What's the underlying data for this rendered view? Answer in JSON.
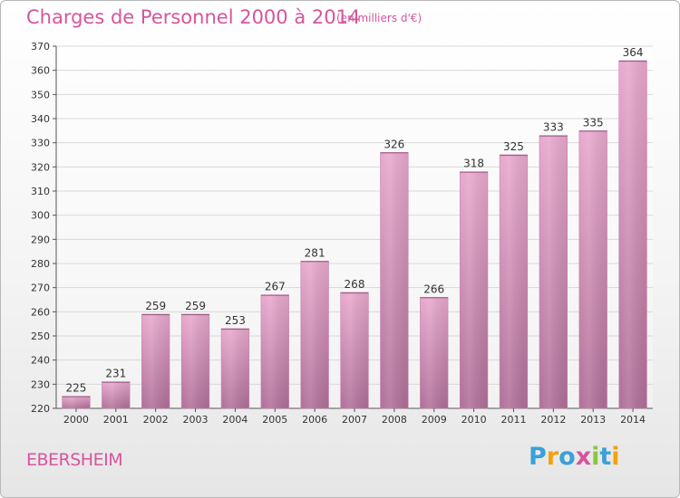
{
  "title": "Charges de Personnel 2000 à 2014",
  "subtitle": "(en milliers d'€)",
  "commune": "EBERSHEIM",
  "logo": {
    "text": "Proxiti",
    "letters": [
      {
        "ch": "P",
        "color": "#3aa0da"
      },
      {
        "ch": "r",
        "color": "#f3a20c"
      },
      {
        "ch": "o",
        "color": "#3aa0da"
      },
      {
        "ch": "x",
        "color": "#d6559c"
      },
      {
        "ch": "i",
        "color": "#8cc63e"
      },
      {
        "ch": "t",
        "color": "#3aa0da"
      },
      {
        "ch": "i",
        "color": "#f3a20c"
      }
    ]
  },
  "colors": {
    "bar_top": "#e8a8cd",
    "bar_bottom": "#b06f98",
    "accent": "#d6559c",
    "grid": "#d9d9d9"
  },
  "chart_data": {
    "type": "bar",
    "title": "Charges de Personnel 2000 à 2014",
    "subtitle": "(en milliers d'€)",
    "xlabel": "",
    "ylabel": "",
    "ylim": [
      220,
      370
    ],
    "ytick_step": 10,
    "grid": true,
    "categories": [
      "2000",
      "2001",
      "2002",
      "2003",
      "2004",
      "2005",
      "2006",
      "2007",
      "2008",
      "2009",
      "2010",
      "2011",
      "2012",
      "2013",
      "2014"
    ],
    "values": [
      225,
      231,
      259,
      259,
      253,
      267,
      281,
      268,
      326,
      266,
      318,
      325,
      333,
      335,
      364
    ]
  }
}
